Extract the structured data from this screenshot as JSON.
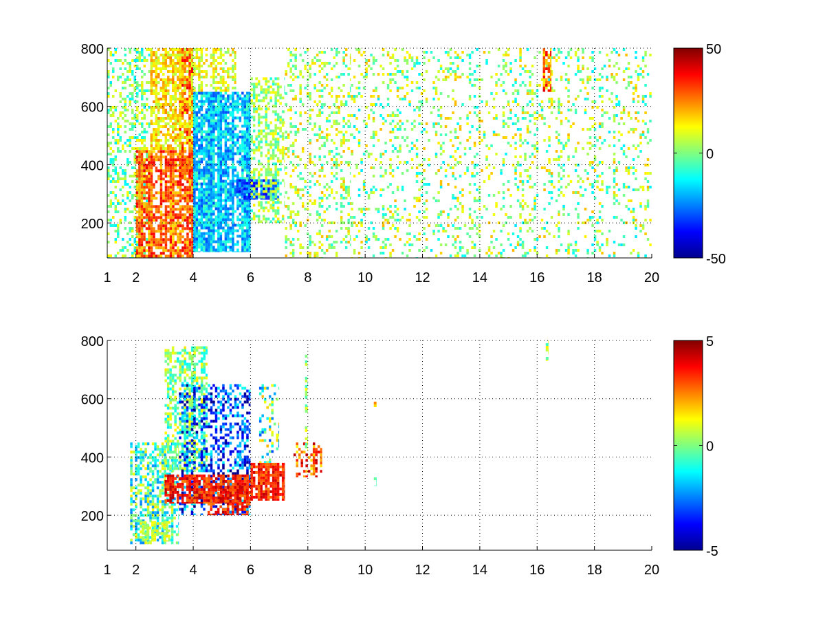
{
  "chart_data": [
    {
      "type": "heatmap",
      "title": "",
      "xlabel": "",
      "ylabel": "",
      "x_ticks": [
        1,
        2,
        4,
        6,
        8,
        10,
        12,
        14,
        16,
        18,
        20
      ],
      "y_ticks": [
        200,
        400,
        600,
        800
      ],
      "xlim": [
        1,
        20
      ],
      "ylim": [
        80,
        800
      ],
      "grid": true,
      "colormap": "jet",
      "colorbar": {
        "range": [
          -50,
          50
        ],
        "ticks": [
          50,
          0,
          -50
        ]
      },
      "regions": [
        {
          "x_range": [
            1,
            2.5
          ],
          "y_range": [
            80,
            800
          ],
          "value_range": [
            -15,
            15
          ],
          "density": 0.35
        },
        {
          "x_range": [
            2,
            4
          ],
          "y_range": [
            80,
            450
          ],
          "value_range": [
            15,
            40
          ],
          "density": 0.85
        },
        {
          "x_range": [
            3.5,
            4
          ],
          "y_range": [
            350,
            800
          ],
          "value_range": [
            20,
            40
          ],
          "density": 0.75
        },
        {
          "x_range": [
            2.5,
            4
          ],
          "y_range": [
            450,
            800
          ],
          "value_range": [
            5,
            25
          ],
          "density": 0.6
        },
        {
          "x_range": [
            4,
            6
          ],
          "y_range": [
            100,
            650
          ],
          "value_range": [
            -30,
            -5
          ],
          "density": 0.8
        },
        {
          "x_range": [
            4,
            5.5
          ],
          "y_range": [
            650,
            800
          ],
          "value_range": [
            0,
            20
          ],
          "density": 0.5
        },
        {
          "x_range": [
            5.5,
            7
          ],
          "y_range": [
            280,
            350
          ],
          "value_range": [
            -40,
            -20
          ],
          "density": 0.9
        },
        {
          "x_range": [
            6,
            7.2
          ],
          "y_range": [
            200,
            700
          ],
          "value_range": [
            -10,
            15
          ],
          "density": 0.45
        },
        {
          "x_range": [
            7.2,
            9.5
          ],
          "y_range": [
            80,
            800
          ],
          "value_range": [
            -10,
            20
          ],
          "density": 0.25
        },
        {
          "x_range": [
            9.5,
            20
          ],
          "y_range": [
            80,
            800
          ],
          "value_range": [
            -15,
            20
          ],
          "density": 0.18
        },
        {
          "x_range": [
            16.2,
            16.5
          ],
          "y_range": [
            650,
            800
          ],
          "value_range": [
            10,
            40
          ],
          "density": 0.8
        }
      ]
    },
    {
      "type": "heatmap",
      "title": "",
      "xlabel": "",
      "ylabel": "",
      "x_ticks": [
        1,
        2,
        4,
        6,
        8,
        10,
        12,
        14,
        16,
        18,
        20
      ],
      "y_ticks": [
        200,
        400,
        600,
        800
      ],
      "xlim": [
        1,
        20
      ],
      "ylim": [
        80,
        800
      ],
      "grid": true,
      "colormap": "jet",
      "colorbar": {
        "range": [
          -5,
          5
        ],
        "ticks": [
          5,
          0,
          -5
        ]
      },
      "regions": [
        {
          "x_range": [
            1.8,
            3.5
          ],
          "y_range": [
            100,
            450
          ],
          "value_range": [
            -2.5,
            1.5
          ],
          "density": 0.55
        },
        {
          "x_range": [
            2.2,
            3.2
          ],
          "y_range": [
            110,
            180
          ],
          "value_range": [
            0,
            1.5
          ],
          "density": 0.6
        },
        {
          "x_range": [
            3,
            4.5
          ],
          "y_range": [
            350,
            780
          ],
          "value_range": [
            -1.5,
            1.5
          ],
          "density": 0.55
        },
        {
          "x_range": [
            3.5,
            6
          ],
          "y_range": [
            200,
            650
          ],
          "value_range": [
            -5,
            -1
          ],
          "density": 0.4
        },
        {
          "x_range": [
            3,
            6
          ],
          "y_range": [
            240,
            340
          ],
          "value_range": [
            2.5,
            4.5
          ],
          "density": 0.75
        },
        {
          "x_range": [
            4.5,
            6
          ],
          "y_range": [
            200,
            300
          ],
          "value_range": [
            2.5,
            4.5
          ],
          "density": 0.6
        },
        {
          "x_range": [
            6,
            7.2
          ],
          "y_range": [
            250,
            380
          ],
          "value_range": [
            2.5,
            4.5
          ],
          "density": 0.8
        },
        {
          "x_range": [
            6.3,
            7
          ],
          "y_range": [
            380,
            650
          ],
          "value_range": [
            -3,
            2
          ],
          "density": 0.25
        },
        {
          "x_range": [
            7.5,
            8.5
          ],
          "y_range": [
            330,
            450
          ],
          "value_range": [
            1,
            4.5
          ],
          "density": 0.45
        },
        {
          "x_range": [
            7.9,
            8
          ],
          "y_range": [
            420,
            760
          ],
          "value_range": [
            -1,
            1.5
          ],
          "density": 0.3
        },
        {
          "x_range": [
            10.3,
            10.4
          ],
          "y_range": [
            300,
            330
          ],
          "value_range": [
            -1,
            0
          ],
          "density": 0.9
        },
        {
          "x_range": [
            10.3,
            10.4
          ],
          "y_range": [
            570,
            590
          ],
          "value_range": [
            1.5,
            2.5
          ],
          "density": 0.9
        },
        {
          "x_range": [
            16.3,
            16.4
          ],
          "y_range": [
            730,
            800
          ],
          "value_range": [
            -1,
            1.5
          ],
          "density": 0.9
        }
      ]
    }
  ]
}
